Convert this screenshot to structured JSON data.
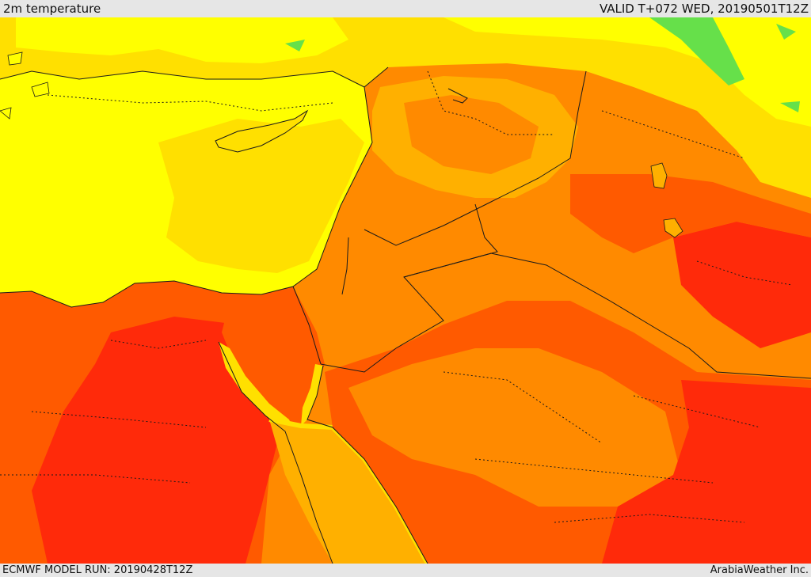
{
  "header": {
    "title": "2m temperature",
    "valid": "VALID T+072 WED, 20190501T12Z"
  },
  "footer": {
    "model_run": "ECMWF MODEL RUN: 20190428T12Z",
    "credit": "ArabiaWeather Inc."
  },
  "colors": {
    "green": "#66e04a",
    "lime": "#c8f03a",
    "yellow": "#ffff00",
    "gold": "#ffe000",
    "amber": "#ffb000",
    "orange": "#ff8a00",
    "orange_red": "#ff5a00",
    "red": "#ff2a0a",
    "line": "#1a1a1a"
  }
}
